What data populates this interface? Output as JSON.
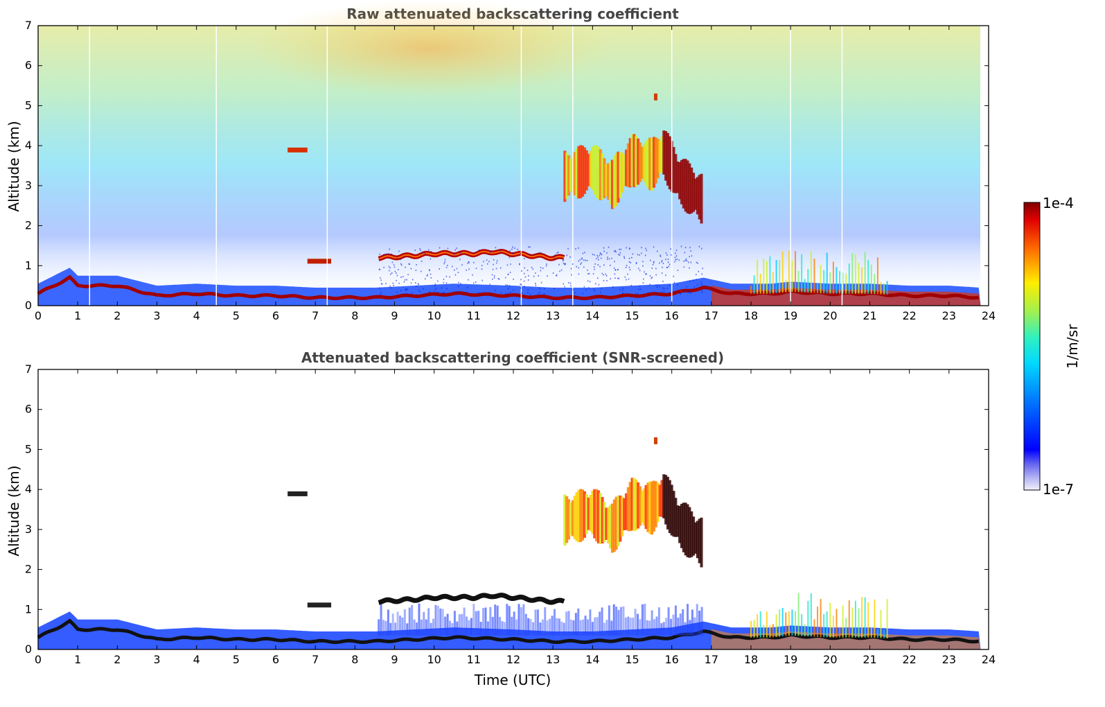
{
  "chart_data": [
    {
      "type": "heatmap",
      "title": "Raw attenuated backscattering coefficient",
      "xlabel": "",
      "ylabel": "Altitude (km)",
      "xlim": [
        0,
        24
      ],
      "ylim": [
        0,
        7
      ],
      "xticks": [
        "0",
        "1",
        "2",
        "3",
        "4",
        "5",
        "6",
        "7",
        "8",
        "9",
        "10",
        "11",
        "12",
        "13",
        "14",
        "15",
        "16",
        "17",
        "18",
        "19",
        "20",
        "21",
        "22",
        "23",
        "24"
      ],
      "yticks": [
        "0",
        "1",
        "2",
        "3",
        "4",
        "5",
        "6",
        "7"
      ],
      "screened": false,
      "features": [
        {
          "name": "boundary layer top",
          "t": [
            0,
            0.8,
            1,
            2,
            3,
            4,
            5,
            6,
            7,
            8,
            8.5,
            9.5,
            10.5,
            12,
            13,
            14,
            15,
            16,
            16.8,
            17.5,
            18.5,
            19,
            20,
            21,
            22,
            23,
            23.8
          ],
          "alt": [
            0.3,
            0.7,
            0.5,
            0.5,
            0.25,
            0.3,
            0.25,
            0.25,
            0.2,
            0.2,
            0.2,
            0.25,
            0.3,
            0.25,
            0.2,
            0.2,
            0.25,
            0.3,
            0.45,
            0.3,
            0.3,
            0.35,
            0.3,
            0.3,
            0.25,
            0.25,
            0.2
          ]
        },
        {
          "name": "low cloud layer",
          "t": [
            8.6,
            9.5,
            10,
            11,
            11.5,
            12,
            13,
            13.3
          ],
          "alt": [
            1.2,
            1.25,
            1.3,
            1.3,
            1.35,
            1.3,
            1.2,
            1.2
          ]
        },
        {
          "name": "mid-level cloud",
          "t": [
            13.3,
            14,
            14.5,
            15,
            15.5,
            15.8,
            16.2,
            16.8
          ],
          "alt": [
            3.2,
            3.4,
            3.0,
            3.6,
            3.5,
            3.8,
            3.1,
            2.6
          ]
        },
        {
          "name": "small cloud 6.5h",
          "t": [
            6.3,
            6.8
          ],
          "alt": [
            3.9,
            3.9
          ]
        },
        {
          "name": "small cloud 15.6h",
          "t": [
            15.55,
            15.65
          ],
          "alt": [
            5.2,
            5.2
          ]
        }
      ]
    },
    {
      "type": "heatmap",
      "title": "Attenuated backscattering coefficient (SNR-screened)",
      "xlabel": "Time (UTC)",
      "ylabel": "Altitude (km)",
      "xlim": [
        0,
        24
      ],
      "ylim": [
        0,
        7
      ],
      "xticks": [
        "0",
        "1",
        "2",
        "3",
        "4",
        "5",
        "6",
        "7",
        "8",
        "9",
        "10",
        "11",
        "12",
        "13",
        "14",
        "15",
        "16",
        "17",
        "18",
        "19",
        "20",
        "21",
        "22",
        "23",
        "24"
      ],
      "yticks": [
        "0",
        "1",
        "2",
        "3",
        "4",
        "5",
        "6",
        "7"
      ],
      "screened": true
    }
  ],
  "colorbar": {
    "label": "1/m/sr",
    "max_label": "1e-4",
    "min_label": "1e-7",
    "range": [
      1e-07,
      0.0001
    ],
    "colormap": "jet (white at low end)"
  }
}
